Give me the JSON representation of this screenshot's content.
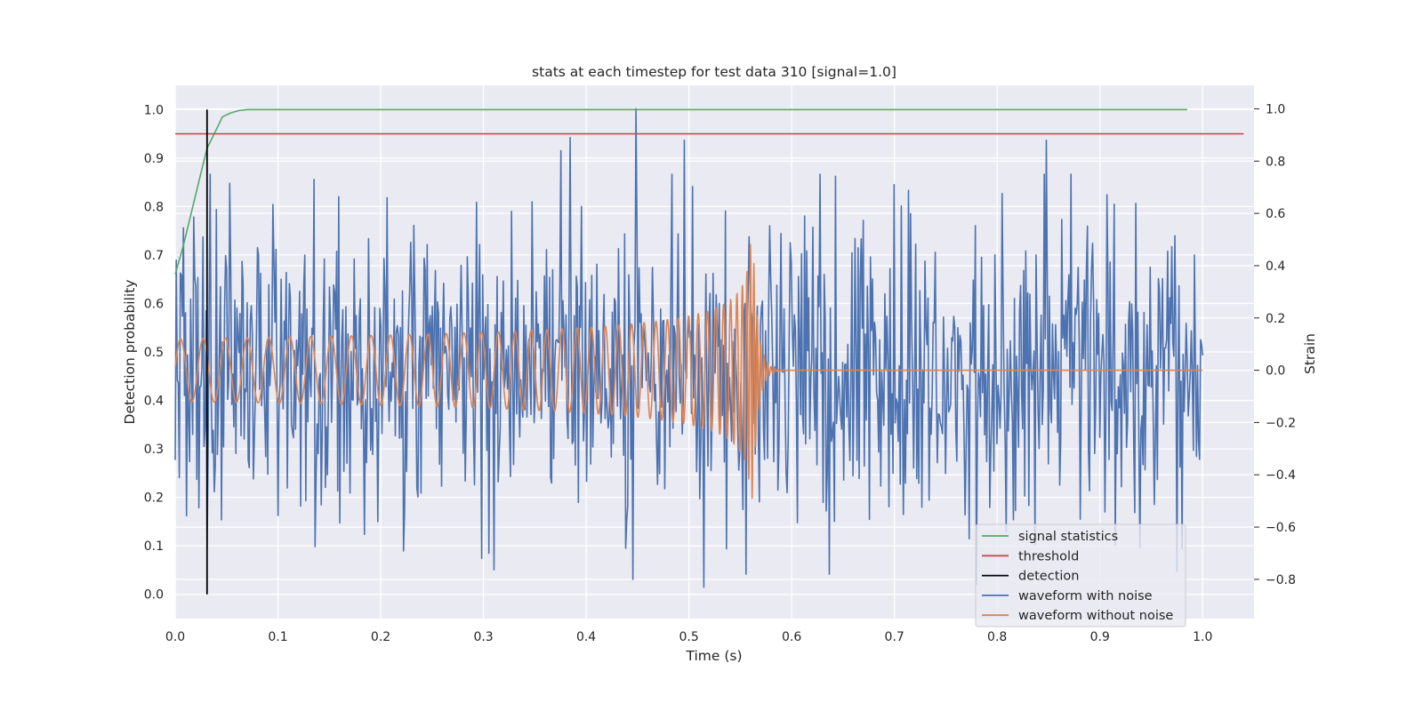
{
  "chart_data": {
    "type": "line",
    "title": "stats at each timestep for test data 310 [signal=1.0]",
    "xlabel": "Time (s)",
    "ylabel_left": "Detection probability",
    "ylabel_right": "Strain",
    "xlim": [
      0.0,
      1.05
    ],
    "ylim_left": [
      -0.05,
      1.05
    ],
    "ylim_right": [
      -0.95,
      1.09
    ],
    "x_ticks": [
      "0.0",
      "0.1",
      "0.2",
      "0.3",
      "0.4",
      "0.5",
      "0.6",
      "0.7",
      "0.8",
      "0.9",
      "1.0"
    ],
    "y_ticks_left": [
      "0.0",
      "0.1",
      "0.2",
      "0.3",
      "0.4",
      "0.5",
      "0.6",
      "0.7",
      "0.8",
      "0.9",
      "1.0"
    ],
    "y_ticks_right": [
      "−0.8",
      "−0.6",
      "−0.4",
      "−0.2",
      "0.0",
      "0.2",
      "0.4",
      "0.6",
      "0.8",
      "1.0"
    ],
    "grid": true,
    "legend_placement": "lower-right",
    "colors": {
      "signal_statistics": "#55a868",
      "threshold": "#c44e52",
      "detection": "#000000",
      "waveform_with_noise": "#4c72b0",
      "waveform_without_noise": "#dd8452",
      "plot_background": "#eaeaf2"
    },
    "series": [
      {
        "name": "signal statistics",
        "axis": "left",
        "x": [
          0.0,
          0.008,
          0.016,
          0.024,
          0.031,
          0.038,
          0.046,
          0.054,
          0.062,
          0.07,
          0.08,
          0.2,
          0.5,
          0.8,
          0.985
        ],
        "values": [
          0.66,
          0.72,
          0.79,
          0.86,
          0.92,
          0.95,
          0.985,
          0.993,
          0.998,
          1.0,
          1.0,
          1.0,
          1.0,
          1.0,
          1.0
        ]
      },
      {
        "name": "threshold",
        "axis": "left",
        "x": [
          0.0,
          1.04
        ],
        "values": [
          0.95,
          0.95
        ]
      },
      {
        "name": "detection",
        "axis": "left",
        "x": [
          0.031,
          0.031
        ],
        "values": [
          0.0,
          1.0
        ]
      },
      {
        "name": "waveform with noise",
        "axis": "right",
        "x_range": [
          0.0,
          1.0
        ],
        "points": 1000,
        "noise_std": 0.3,
        "peaks": [
          {
            "x": 0.027,
            "value": 0.51
          },
          {
            "x": 0.135,
            "value": 0.73
          },
          {
            "x": 0.206,
            "value": 0.66
          },
          {
            "x": 0.375,
            "value": 0.84
          },
          {
            "x": 0.384,
            "value": 0.89
          },
          {
            "x": 0.448,
            "value": 1.0
          },
          {
            "x": 0.495,
            "value": 0.88
          },
          {
            "x": 0.7,
            "value": 0.71
          },
          {
            "x": 0.848,
            "value": 0.88
          },
          {
            "x": 0.445,
            "value": -0.8
          },
          {
            "x": 0.515,
            "value": -0.83
          },
          {
            "x": 0.78,
            "value": -0.82
          },
          {
            "x": 0.975,
            "value": -0.77
          }
        ]
      },
      {
        "name": "waveform without noise",
        "axis": "right",
        "x_range": [
          0.0,
          1.0
        ],
        "merger_time": 0.562,
        "amplitude_start": 0.12,
        "amplitude_peak": 0.52,
        "frequency_start": 45,
        "frequency_peak": 300
      }
    ],
    "legend": [
      "signal statistics",
      "threshold",
      "detection",
      "waveform with noise",
      "waveform without noise"
    ]
  }
}
